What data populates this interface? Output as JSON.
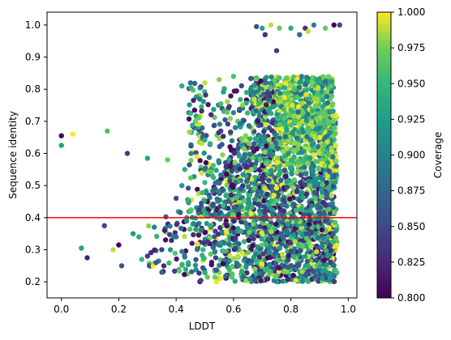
{
  "chart_data": {
    "type": "scatter",
    "title": "",
    "xlabel": "LDDT",
    "ylabel": "Sequence identity",
    "xlim": [
      -0.05,
      1.03
    ],
    "ylim": [
      0.15,
      1.04
    ],
    "xticks": [
      "0.0",
      "0.2",
      "0.4",
      "0.6",
      "0.8",
      "1.0"
    ],
    "yticks": [
      "0.2",
      "0.3",
      "0.4",
      "0.5",
      "0.6",
      "0.7",
      "0.8",
      "0.9",
      "1.0"
    ],
    "grid": false,
    "colorbar": {
      "label": "Coverage",
      "range": [
        0.8,
        1.0
      ],
      "ticks": [
        "0.800",
        "0.825",
        "0.850",
        "0.875",
        "0.900",
        "0.925",
        "0.950",
        "0.975",
        "1.000"
      ],
      "colormap": "viridis"
    },
    "reference_line": {
      "y": 0.4,
      "color": "#ff0000"
    },
    "points": {
      "note_values": [
        [
          0.0,
          0.655,
          0.8
        ],
        [
          0.0,
          0.625,
          0.93
        ],
        [
          0.04,
          0.66,
          1.0
        ],
        [
          0.16,
          0.67,
          0.96
        ],
        [
          0.23,
          0.6,
          0.84
        ],
        [
          0.3,
          0.585,
          0.93
        ],
        [
          0.37,
          0.58,
          0.97
        ],
        [
          0.42,
          0.81,
          0.94
        ],
        [
          0.45,
          0.82,
          0.88
        ],
        [
          0.5,
          0.82,
          0.99
        ],
        [
          0.55,
          0.83,
          0.98
        ],
        [
          0.6,
          0.84,
          0.96
        ],
        [
          0.07,
          0.305,
          0.93
        ],
        [
          0.09,
          0.275,
          0.82
        ],
        [
          0.15,
          0.375,
          0.85
        ],
        [
          0.18,
          0.3,
          0.99
        ],
        [
          0.2,
          0.315,
          0.8
        ],
        [
          0.21,
          0.25,
          0.86
        ],
        [
          0.25,
          0.35,
          0.92
        ],
        [
          0.27,
          0.34,
          0.94
        ],
        [
          0.28,
          0.27,
          0.95
        ],
        [
          0.3,
          0.28,
          0.84
        ],
        [
          0.32,
          0.25,
          1.0
        ],
        [
          0.33,
          0.26,
          0.86
        ],
        [
          0.35,
          0.23,
          0.87
        ],
        [
          0.38,
          0.3,
          0.92
        ],
        [
          0.36,
          0.36,
          0.82
        ],
        [
          0.4,
          0.34,
          0.88
        ],
        [
          0.4,
          0.46,
          0.85
        ],
        [
          0.42,
          0.5,
          0.92
        ],
        [
          0.43,
          0.55,
          0.94
        ],
        [
          0.45,
          0.42,
          0.96
        ],
        [
          0.68,
          0.995,
          0.86
        ],
        [
          0.7,
          0.99,
          0.93
        ],
        [
          0.73,
          1.0,
          0.99
        ],
        [
          0.76,
          0.99,
          0.97
        ],
        [
          0.8,
          0.99,
          0.94
        ],
        [
          0.83,
          0.97,
          0.88
        ],
        [
          0.85,
          0.99,
          0.83
        ],
        [
          0.88,
          1.0,
          0.9
        ],
        [
          0.92,
          0.99,
          0.97
        ],
        [
          0.95,
          1.0,
          0.8
        ],
        [
          0.97,
          1.0,
          0.85
        ],
        [
          0.75,
          0.92,
          0.84
        ],
        [
          0.71,
          0.97,
          0.83
        ],
        [
          0.86,
          0.98,
          0.99
        ]
      ]
    }
  }
}
